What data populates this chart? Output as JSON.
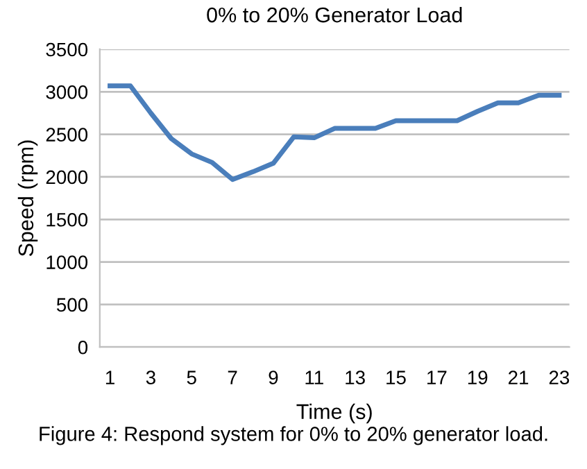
{
  "chart_data": {
    "type": "line",
    "title": "0% to 20% Generator Load",
    "xlabel": "Time (s)",
    "ylabel": "Speed (rpm)",
    "categories": [
      "1",
      null,
      "3",
      null,
      "5",
      null,
      "7",
      null,
      "9",
      null,
      "11",
      null,
      "13",
      null,
      "15",
      null,
      "17",
      null,
      "19",
      null,
      "21",
      null,
      "23"
    ],
    "series": [
      {
        "color": "#4a7ebb",
        "values": [
          3070,
          3070,
          2750,
          2450,
          2270,
          2170,
          1970,
          2060,
          2160,
          2470,
          2460,
          2570,
          2570,
          2570,
          2660,
          2660,
          2660,
          2660,
          2770,
          2870,
          2870,
          2960,
          2960
        ]
      }
    ],
    "ylim": [
      0,
      3500
    ],
    "yticks": [
      0,
      500,
      1000,
      1500,
      2000,
      2500,
      3000,
      3500
    ],
    "grid": "y",
    "legend": false,
    "marker": "none",
    "line_style": "solid",
    "annotations": [
      "Figure 4: Respond system for 0% to 20% generator load."
    ]
  }
}
